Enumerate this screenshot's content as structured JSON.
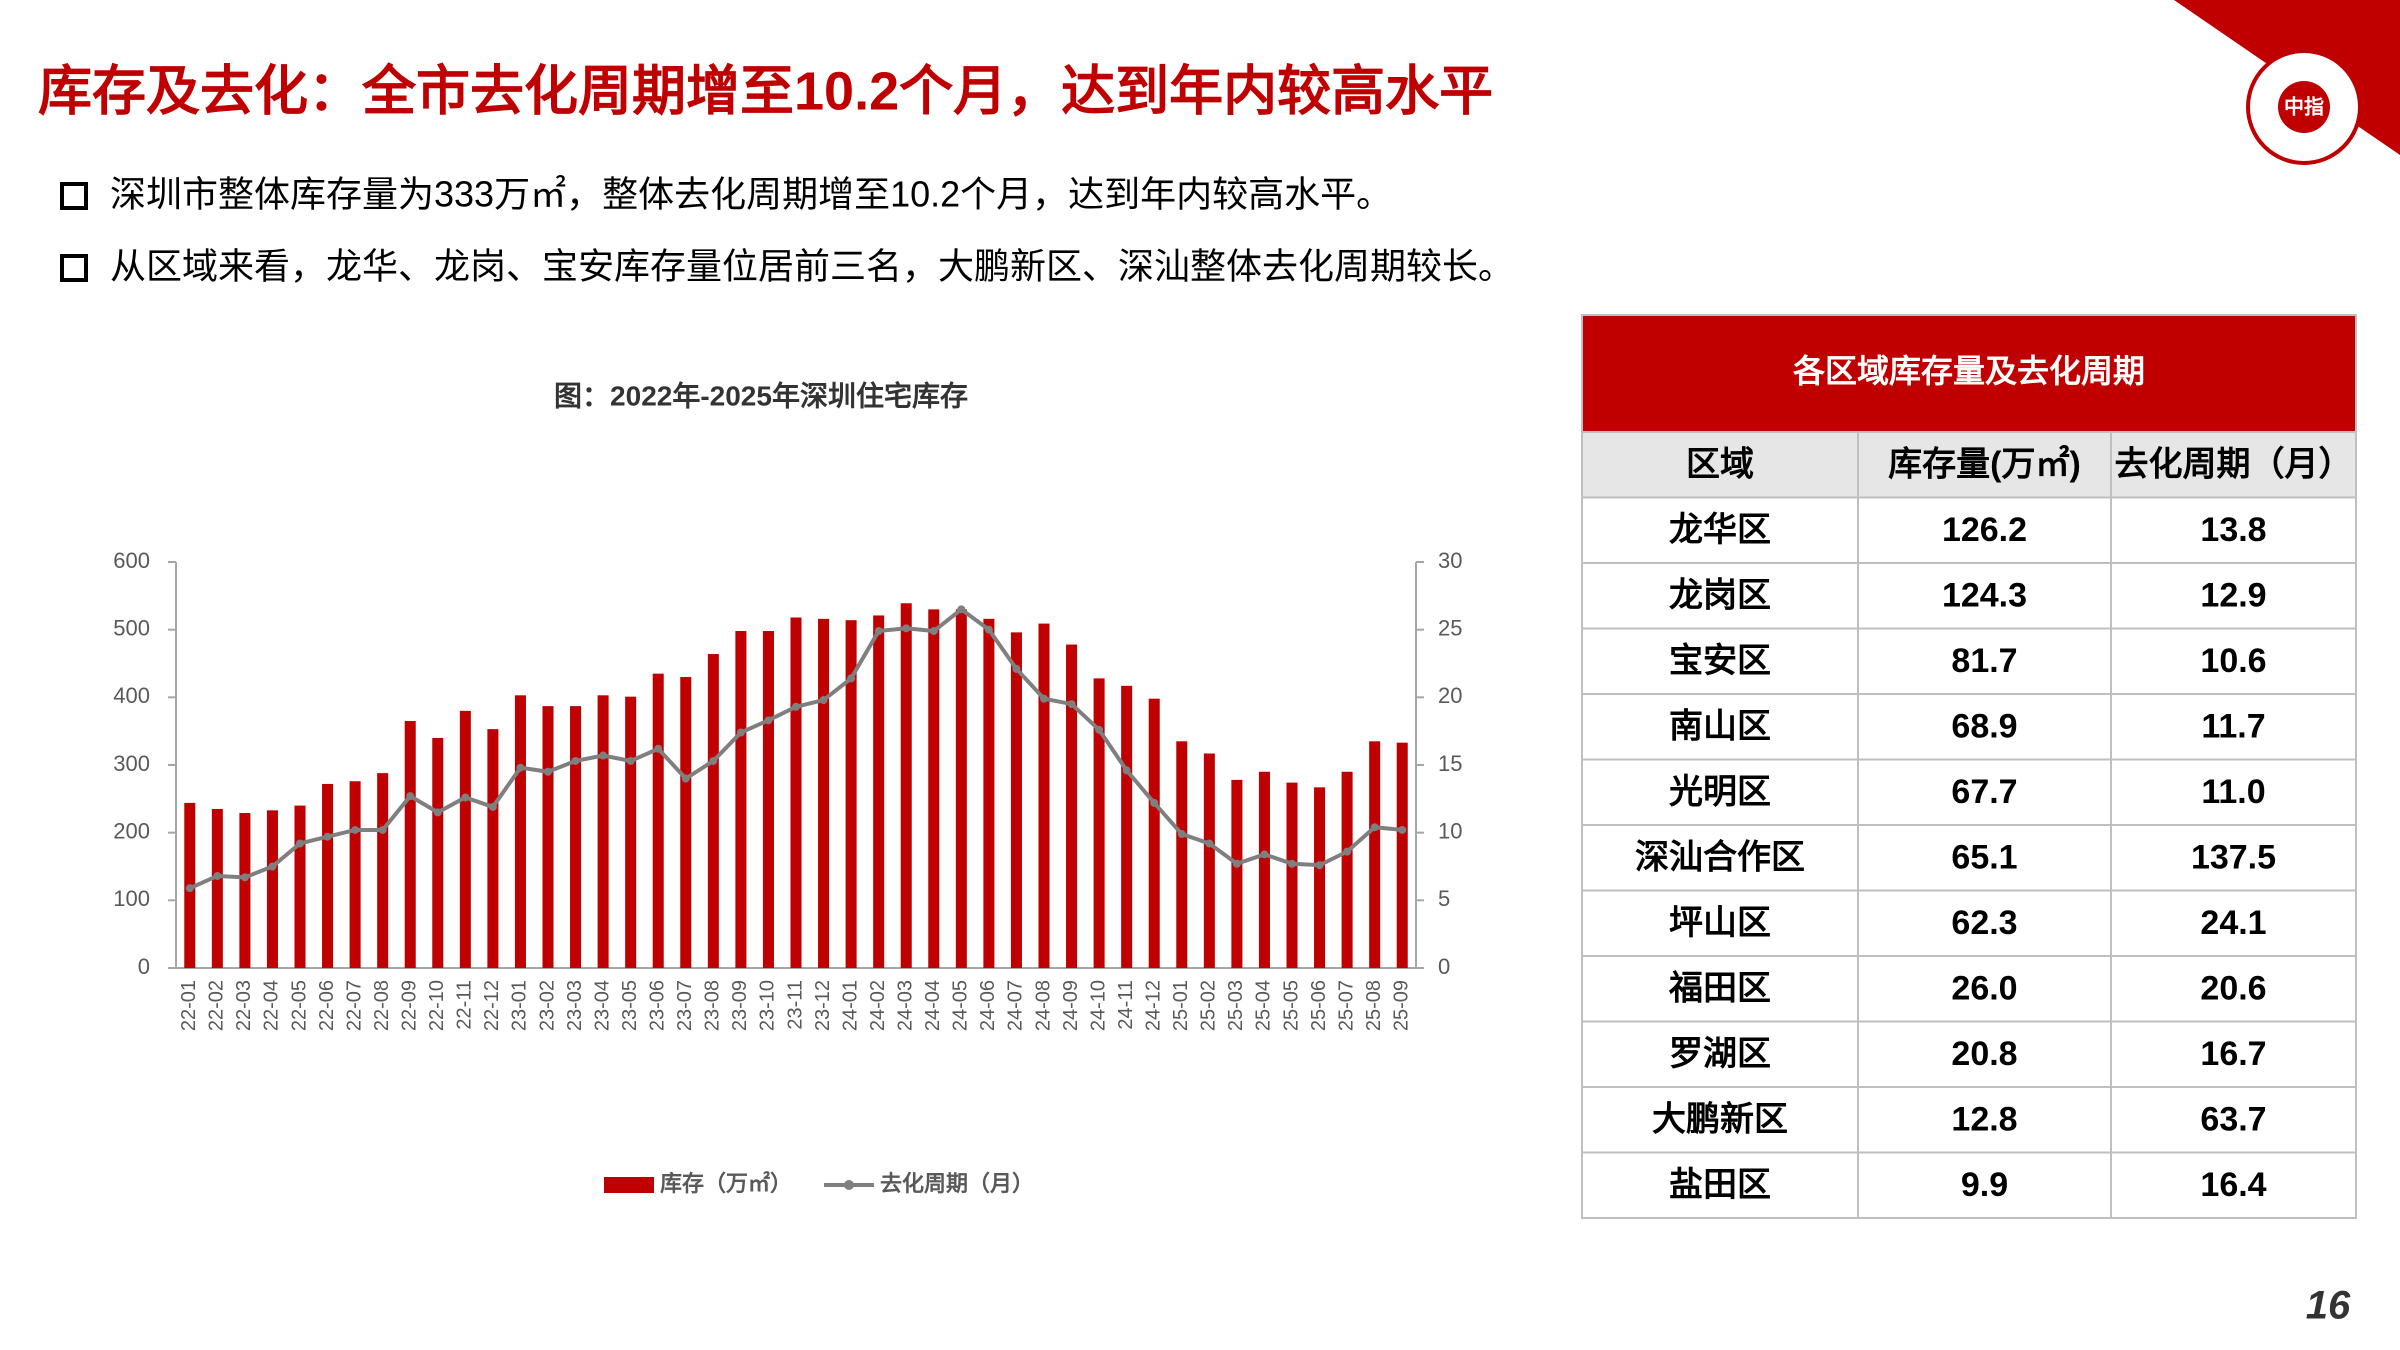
{
  "header": {
    "title": "库存及去化：全市去化周期增至10.2个月，达到年内较高水平"
  },
  "bullets": [
    "深圳市整体库存量为333万㎡，整体去化周期增至10.2个月，达到年内较高水平。",
    "从区域来看，龙华、龙岗、宝安库存量位居前三名，大鹏新区、深汕整体去化周期较长。"
  ],
  "logo": {
    "text": "中指"
  },
  "page_number": "16",
  "chart_data": {
    "type": "bar",
    "title": "图：2022年-2025年深圳住宅库存",
    "categories": [
      "22-01",
      "22-02",
      "22-03",
      "22-04",
      "22-05",
      "22-06",
      "22-07",
      "22-08",
      "22-09",
      "22-10",
      "22-11",
      "22-12",
      "23-01",
      "23-02",
      "23-03",
      "23-04",
      "23-05",
      "23-06",
      "23-07",
      "23-08",
      "23-09",
      "23-10",
      "23-11",
      "23-12",
      "24-01",
      "24-02",
      "24-03",
      "24-04",
      "24-05",
      "24-06",
      "24-07",
      "24-08",
      "24-09",
      "24-10",
      "24-11",
      "24-12",
      "25-01",
      "25-02",
      "25-03",
      "25-04",
      "25-05",
      "25-06",
      "25-07",
      "25-08",
      "25-09"
    ],
    "series": [
      {
        "name": "库存（万㎡）",
        "type": "bar",
        "color": "#c00000",
        "values": [
          244,
          235,
          229,
          233,
          240,
          272,
          276,
          288,
          365,
          340,
          380,
          353,
          403,
          387,
          387,
          403,
          401,
          435,
          430,
          464,
          498,
          498,
          518,
          516,
          514,
          521,
          539,
          530,
          530,
          516,
          496,
          509,
          478,
          428,
          417,
          398,
          335,
          317,
          278,
          290,
          274,
          267,
          290,
          335,
          333
        ]
      },
      {
        "name": "去化周期（月）",
        "type": "line",
        "axis": "y2",
        "color": "#7f7f7f",
        "values": [
          5.9,
          6.8,
          6.7,
          7.5,
          9.2,
          9.7,
          10.2,
          10.2,
          12.7,
          11.5,
          12.6,
          11.9,
          14.8,
          14.5,
          15.3,
          15.7,
          15.3,
          16.2,
          14.0,
          15.3,
          17.4,
          18.3,
          19.3,
          19.8,
          21.4,
          24.9,
          25.1,
          24.9,
          26.5,
          25.0,
          22.1,
          19.9,
          19.5,
          17.6,
          14.6,
          12.2,
          9.9,
          9.2,
          7.7,
          8.4,
          7.7,
          7.6,
          8.6,
          10.4,
          10.2
        ]
      }
    ],
    "ylim": [
      0,
      600
    ],
    "yticks": [
      0,
      100,
      200,
      300,
      400,
      500,
      600
    ],
    "y2lim": [
      0,
      30
    ],
    "y2ticks": [
      0,
      5,
      10,
      15,
      20,
      25,
      30
    ],
    "grid": false,
    "legend": "bottom"
  },
  "table": {
    "title": "各区域库存量及去化周期",
    "columns": [
      "区域",
      "库存量(万㎡)",
      "去化周期（月）"
    ],
    "rows": [
      [
        "龙华区",
        "126.2",
        "13.8"
      ],
      [
        "龙岗区",
        "124.3",
        "12.9"
      ],
      [
        "宝安区",
        "81.7",
        "10.6"
      ],
      [
        "南山区",
        "68.9",
        "11.7"
      ],
      [
        "光明区",
        "67.7",
        "11.0"
      ],
      [
        "深汕合作区",
        "65.1",
        "137.5"
      ],
      [
        "坪山区",
        "62.3",
        "24.1"
      ],
      [
        "福田区",
        "26.0",
        "20.6"
      ],
      [
        "罗湖区",
        "20.8",
        "16.7"
      ],
      [
        "大鹏新区",
        "12.8",
        "63.7"
      ],
      [
        "盐田区",
        "9.9",
        "16.4"
      ]
    ]
  }
}
